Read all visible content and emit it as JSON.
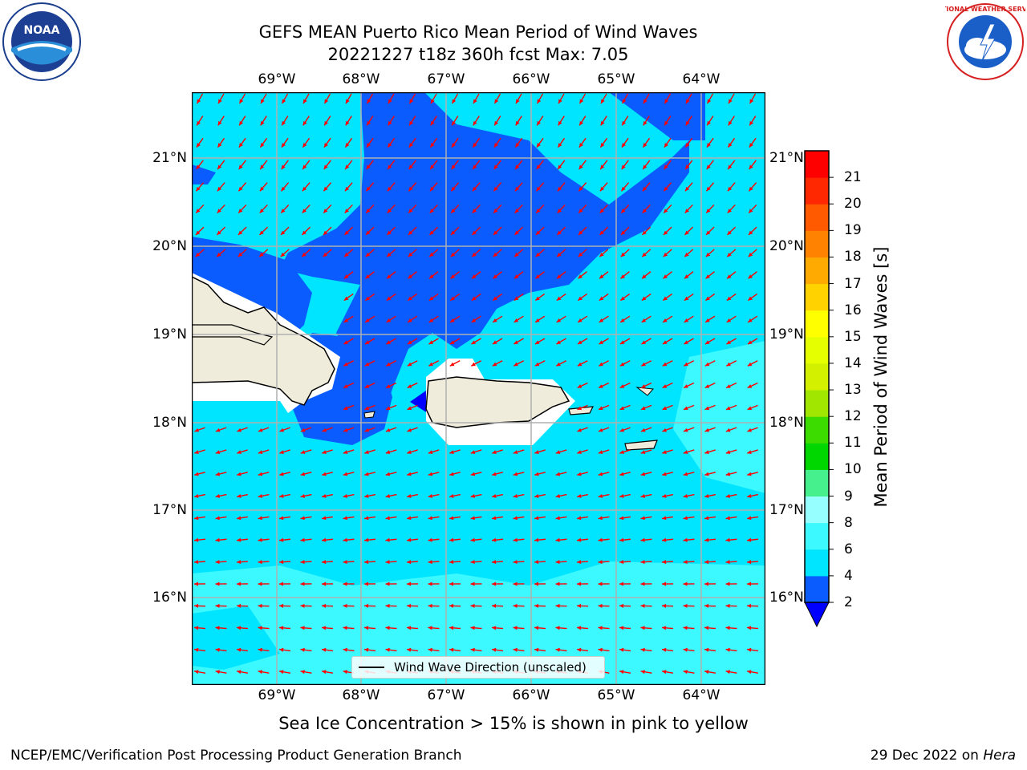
{
  "header": {
    "title_line1": "GEFS MEAN Puerto Rico Mean Period of Wind Waves",
    "title_line2": "20221227 t18z 360h fcst   Max: 7.05"
  },
  "logos": {
    "left": "NOAA",
    "right": "NATIONAL WEATHER SERVICE"
  },
  "map": {
    "lon_ticks": [
      "69°W",
      "68°W",
      "67°W",
      "66°W",
      "65°W",
      "64°W"
    ],
    "lat_ticks": [
      "21°N",
      "20°N",
      "19°N",
      "18°N",
      "17°N",
      "16°N"
    ],
    "legend_label": "Wind Wave Direction (unscaled)",
    "arrow_color": "#ff0000",
    "land_color": "#efecdc",
    "grid": true
  },
  "colorbar": {
    "label": "Mean Period of Wind Waves [s]",
    "ticks": [
      "2",
      "4",
      "6",
      "8",
      "9",
      "10",
      "11",
      "12",
      "13",
      "14",
      "15",
      "16",
      "17",
      "18",
      "19",
      "20",
      "21"
    ],
    "colors": [
      "#0a5cff",
      "#00e5ff",
      "#3cf8ff",
      "#96ffff",
      "#46f08c",
      "#00d700",
      "#3cdc00",
      "#a0e600",
      "#d2f000",
      "#e6ff00",
      "#ffff00",
      "#ffd200",
      "#ffaa00",
      "#ff8200",
      "#ff5a00",
      "#ff2800",
      "#ff0000"
    ],
    "under_color": "#0000ff"
  },
  "notes": {
    "sea_ice": "Sea Ice Concentration > 15% is shown in pink to yellow",
    "branch": "NCEP/EMC/Verification Post Processing Product Generation Branch",
    "date": "29 Dec 2022 on ",
    "host": "Hera"
  }
}
